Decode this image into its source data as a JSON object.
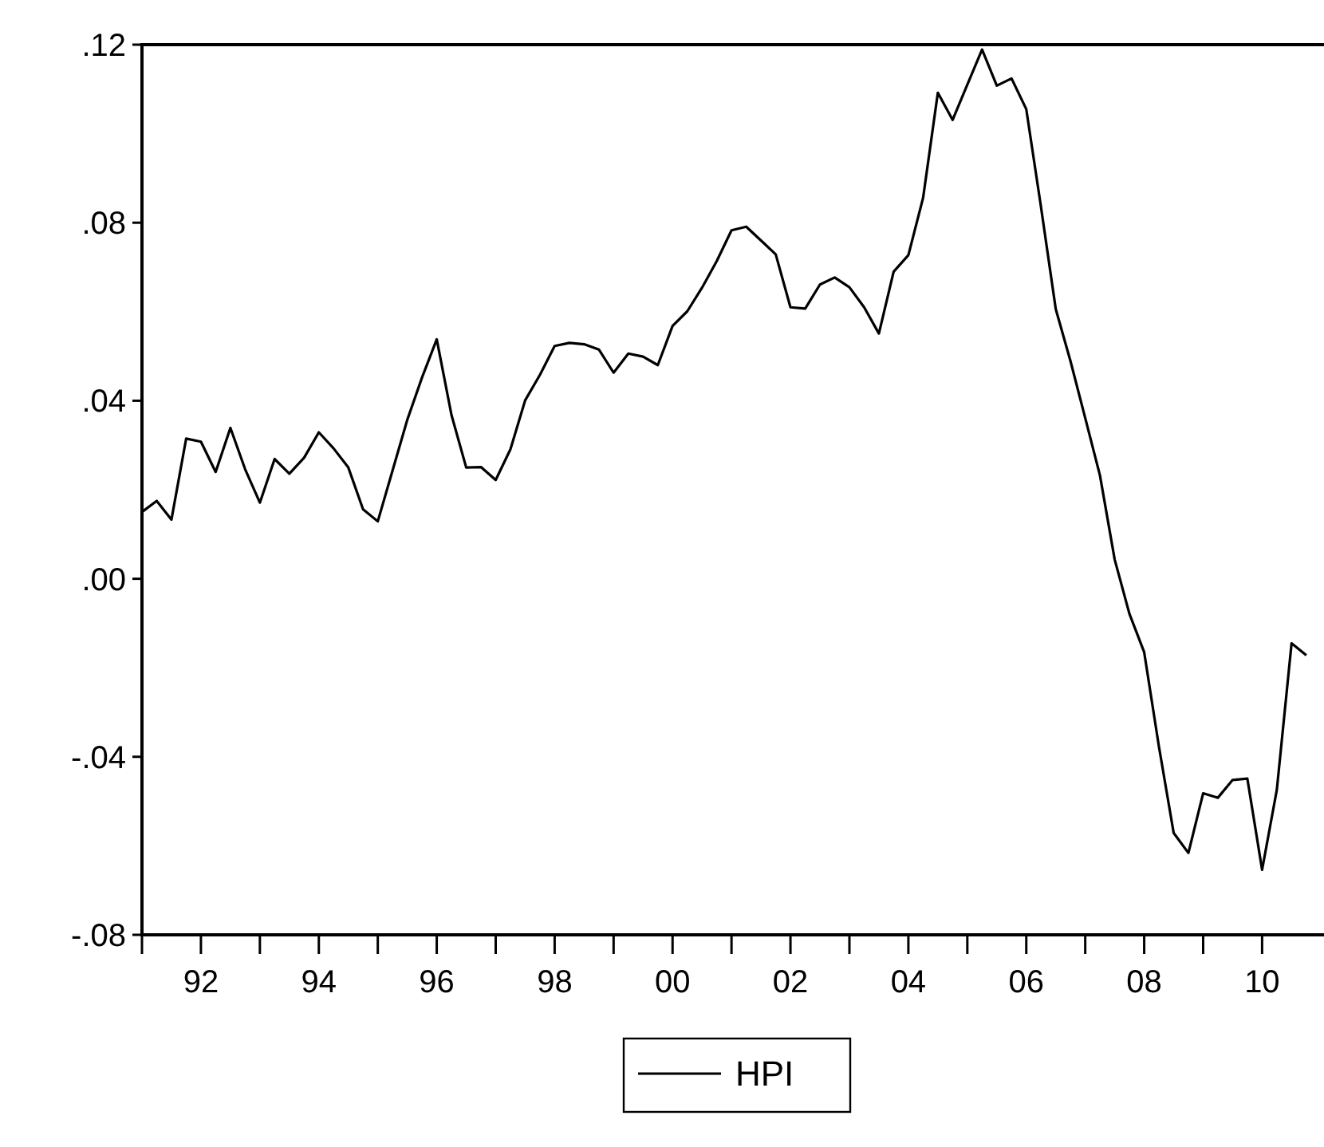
{
  "chart_data": {
    "type": "line",
    "xlim": [
      1991,
      2011.05
    ],
    "ylim": [
      -0.08,
      0.12
    ],
    "xticks": [
      {
        "value": 1991,
        "label": null
      },
      {
        "value": 1992,
        "label": "92"
      },
      {
        "value": 1993,
        "label": null
      },
      {
        "value": 1994,
        "label": "94"
      },
      {
        "value": 1995,
        "label": null
      },
      {
        "value": 1996,
        "label": "96"
      },
      {
        "value": 1997,
        "label": null
      },
      {
        "value": 1998,
        "label": "98"
      },
      {
        "value": 1999,
        "label": null
      },
      {
        "value": 2000,
        "label": "00"
      },
      {
        "value": 2001,
        "label": null
      },
      {
        "value": 2002,
        "label": "02"
      },
      {
        "value": 2003,
        "label": null
      },
      {
        "value": 2004,
        "label": "04"
      },
      {
        "value": 2005,
        "label": null
      },
      {
        "value": 2006,
        "label": "06"
      },
      {
        "value": 2007,
        "label": null
      },
      {
        "value": 2008,
        "label": "08"
      },
      {
        "value": 2009,
        "label": null
      },
      {
        "value": 2010,
        "label": "10"
      }
    ],
    "yticks": [
      {
        "value": 0.12,
        "label": ".12"
      },
      {
        "value": 0.08,
        "label": ".08"
      },
      {
        "value": 0.04,
        "label": ".04"
      },
      {
        "value": 0,
        "label": ".00"
      },
      {
        "value": -0.04,
        "label": "-.04"
      },
      {
        "value": -0.08,
        "label": "-.08"
      }
    ],
    "x": [
      1991,
      1991.25,
      1991.5,
      1991.75,
      1992,
      1992.25,
      1992.5,
      1992.75,
      1993,
      1993.25,
      1993.5,
      1993.75,
      1994,
      1994.25,
      1994.5,
      1994.75,
      1995,
      1995.25,
      1995.5,
      1995.75,
      1996,
      1996.25,
      1996.5,
      1996.75,
      1997,
      1997.25,
      1997.5,
      1997.75,
      1998,
      1998.25,
      1998.5,
      1998.75,
      1999,
      1999.25,
      1999.5,
      1999.75,
      2000,
      2000.25,
      2000.5,
      2000.75,
      2001,
      2001.25,
      2001.5,
      2001.75,
      2002,
      2002.25,
      2002.5,
      2002.75,
      2003,
      2003.25,
      2003.5,
      2003.75,
      2004,
      2004.25,
      2004.5,
      2004.75,
      2005,
      2005.25,
      2005.5,
      2005.75,
      2006,
      2006.25,
      2006.5,
      2006.75,
      2007,
      2007.25,
      2007.5,
      2007.75,
      2008,
      2008.25,
      2008.5,
      2008.75,
      2009,
      2009.25,
      2009.5,
      2009.75,
      2010,
      2010.25,
      2010.5,
      2010.75
    ],
    "series": [
      {
        "name": "HPI",
        "color": "#000000",
        "values": [
          0.015,
          0.0175,
          0.0133,
          0.0315,
          0.0308,
          0.024,
          0.0339,
          0.0246,
          0.0171,
          0.0269,
          0.0236,
          0.0272,
          0.0329,
          0.0293,
          0.025,
          0.0156,
          0.0129,
          0.0243,
          0.0357,
          0.0452,
          0.0538,
          0.0368,
          0.025,
          0.0251,
          0.0222,
          0.0291,
          0.0401,
          0.0458,
          0.0523,
          0.053,
          0.0527,
          0.0515,
          0.0463,
          0.0506,
          0.0499,
          0.048,
          0.0568,
          0.0601,
          0.0654,
          0.0714,
          0.0783,
          0.0791,
          0.076,
          0.0729,
          0.061,
          0.0607,
          0.0661,
          0.0677,
          0.0655,
          0.061,
          0.0551,
          0.069,
          0.0727,
          0.0856,
          0.1092,
          0.1031,
          0.111,
          0.1189,
          0.1108,
          0.1124,
          0.1055,
          0.0835,
          0.0606,
          0.0489,
          0.0361,
          0.0232,
          0.0043,
          -0.0079,
          -0.0165,
          -0.0377,
          -0.0571,
          -0.0616,
          -0.0482,
          -0.0492,
          -0.0452,
          -0.0449,
          -0.0654,
          -0.0474,
          -0.0145,
          -0.0172
        ]
      }
    ],
    "grid": false,
    "legend": "bottom",
    "marker": "none",
    "line_style": "solid"
  }
}
